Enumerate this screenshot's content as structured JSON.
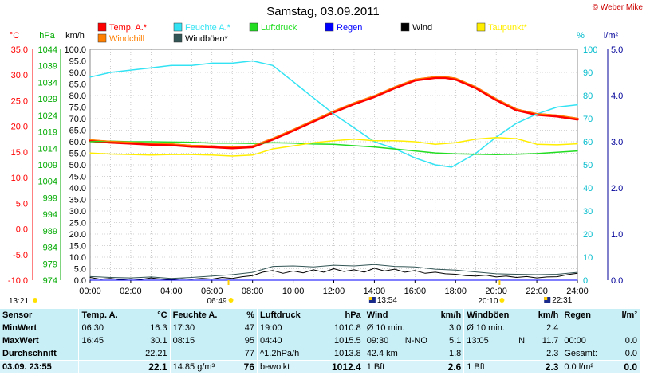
{
  "title": "Samstag, 03.09.2011",
  "copyright": "© Weber Mike",
  "colors": {
    "temp": "#ff0000",
    "windchill": "#ff7f00",
    "humidity": "#33e3f3",
    "dewpoint": "#ffee00",
    "pressure": "#22dd22",
    "rain": "#0000ff",
    "wind": "#000000",
    "gust": "#335555",
    "grid": "#aaaaaa",
    "axis_c": "#ff0000",
    "axis_hpa": "#00aa00",
    "axis_pct": "#00bbcc",
    "axis_rain": "#000099",
    "stats_bg": "#c8eef6"
  },
  "chart_data": {
    "type": "line",
    "x_ticks": [
      "00:00",
      "02:00",
      "04:00",
      "06:00",
      "08:00",
      "10:00",
      "12:00",
      "14:00",
      "16:00",
      "18:00",
      "20:00",
      "22:00",
      "24:00"
    ],
    "xlim": [
      "00:00",
      "24:00"
    ],
    "axes": {
      "c": {
        "label": "°C",
        "ticks": [
          "35.0",
          "30.0",
          "25.0",
          "20.0",
          "15.0",
          "10.0",
          "5.0",
          "0.0",
          "-5.0",
          "-10.0"
        ],
        "lim": [
          -10,
          35
        ]
      },
      "hpa": {
        "label": "hPa",
        "ticks": [
          "1044",
          "1039",
          "1034",
          "1029",
          "1024",
          "1019",
          "1014",
          "1009",
          "1004",
          "999",
          "994",
          "989",
          "984",
          "979",
          "974"
        ],
        "lim": [
          974,
          1044
        ]
      },
      "kmh": {
        "label": "km/h",
        "ticks": [
          "100.0",
          "95.0",
          "90.0",
          "85.0",
          "80.0",
          "75.0",
          "70.0",
          "65.0",
          "60.0",
          "55.0",
          "50.0",
          "45.0",
          "40.0",
          "35.0",
          "30.0",
          "25.0",
          "20.0",
          "15.0",
          "10.0",
          "5.0",
          "0.0"
        ],
        "lim": [
          0,
          100
        ]
      },
      "pct": {
        "label": "%",
        "ticks": [
          "100",
          "90",
          "80",
          "70",
          "60",
          "50",
          "40",
          "30",
          "20",
          "10",
          "0"
        ],
        "lim": [
          0,
          100
        ]
      },
      "rain": {
        "label": "l/m²",
        "ticks": [
          "5.0",
          "4.0",
          "3.0",
          "2.0",
          "1.0",
          "0.0"
        ],
        "lim": [
          0,
          5
        ]
      }
    },
    "legend": [
      {
        "name": "Temp. A.*",
        "color": "#ff0000"
      },
      {
        "name": "Feuchte A.*",
        "color": "#33e3f3"
      },
      {
        "name": "Luftdruck",
        "color": "#22dd22"
      },
      {
        "name": "Regen",
        "color": "#0000ff"
      },
      {
        "name": "Wind",
        "color": "#000000"
      },
      {
        "name": "Taupunkt*",
        "color": "#ffee00"
      },
      {
        "name": "Windchill",
        "color": "#ff7f00"
      },
      {
        "name": "Windböen*",
        "color": "#335555"
      }
    ],
    "series": [
      {
        "name": "Temp. A.*",
        "axis": "c",
        "color": "#ff0000",
        "width": 3.5,
        "x": [
          0,
          1,
          2,
          3,
          4,
          5,
          6,
          7,
          8,
          9,
          10,
          11,
          12,
          13,
          14,
          15,
          16,
          17,
          17.5,
          18,
          19,
          20,
          21,
          22,
          23,
          24
        ],
        "y": [
          17.2,
          16.9,
          16.7,
          16.5,
          16.4,
          16.1,
          16.0,
          15.8,
          16.0,
          17.5,
          19.2,
          21.0,
          22.8,
          24.4,
          25.8,
          27.5,
          29.0,
          29.5,
          29.5,
          29.2,
          27.5,
          25.2,
          23.2,
          22.3,
          22.0,
          21.4
        ]
      },
      {
        "name": "Feuchte A.*",
        "axis": "pct",
        "color": "#33e3f3",
        "width": 1.5,
        "x": [
          0,
          1,
          2,
          3,
          4,
          5,
          6,
          7,
          8,
          9,
          10,
          11,
          12,
          13,
          14,
          15,
          16,
          17,
          17.8,
          18,
          19,
          20,
          21,
          22,
          23,
          24
        ],
        "y": [
          88,
          90,
          91,
          92,
          93,
          93,
          94,
          94,
          95,
          93,
          86,
          79,
          72,
          66,
          60,
          57,
          53,
          50,
          49,
          50,
          55,
          62,
          68,
          72,
          75,
          76
        ]
      },
      {
        "name": "Luftdruck",
        "axis": "hpa",
        "color": "#22dd22",
        "width": 1.5,
        "x": [
          0,
          1,
          2,
          3,
          4,
          5,
          6,
          7,
          8,
          9,
          10,
          11,
          12,
          13,
          14,
          15,
          16,
          17,
          18,
          19,
          20,
          21,
          22,
          23,
          24
        ],
        "y": [
          1016.0,
          1016.2,
          1016.0,
          1016.0,
          1015.9,
          1015.8,
          1015.6,
          1015.6,
          1015.5,
          1015.7,
          1015.6,
          1015.3,
          1015.2,
          1014.8,
          1014.4,
          1013.8,
          1013.2,
          1012.6,
          1012.3,
          1012.2,
          1012.1,
          1012.2,
          1012.4,
          1012.8,
          1013.2
        ]
      },
      {
        "name": "Taupunkt*",
        "axis": "c",
        "color": "#ffee00",
        "width": 1.5,
        "x": [
          0,
          1,
          2,
          3,
          4,
          5,
          6,
          7,
          8,
          9,
          10,
          11,
          12,
          13,
          14,
          15,
          16,
          17,
          18,
          19,
          20,
          21,
          22,
          23,
          24
        ],
        "y": [
          14.8,
          14.6,
          14.5,
          14.4,
          14.5,
          14.5,
          14.4,
          14.2,
          14.4,
          15.6,
          16.2,
          16.8,
          17.2,
          17.5,
          17.2,
          17.2,
          17.0,
          16.5,
          16.8,
          17.5,
          17.8,
          17.6,
          16.5,
          16.4,
          16.6
        ]
      },
      {
        "name": "Windchill",
        "axis": "c",
        "color": "#ff7f00",
        "width": 1.2,
        "x": [
          0,
          1,
          2,
          3,
          4,
          5,
          6,
          7,
          8,
          9,
          10,
          11,
          12,
          13,
          14,
          15,
          16,
          17,
          17.5,
          18,
          19,
          20,
          21,
          22,
          23,
          24
        ],
        "y": [
          17.4,
          17.1,
          16.9,
          16.7,
          16.6,
          16.3,
          16.2,
          16.0,
          16.2,
          17.7,
          19.4,
          21.2,
          23.0,
          24.6,
          26.0,
          27.7,
          29.2,
          29.7,
          29.7,
          29.4,
          27.7,
          25.4,
          23.4,
          22.5,
          22.2,
          21.6
        ]
      },
      {
        "name": "Wind",
        "axis": "kmh",
        "color": "#000000",
        "width": 1,
        "x": [
          0,
          0.5,
          1,
          1.5,
          2,
          2.5,
          3,
          3.5,
          4,
          4.5,
          5,
          5.5,
          6,
          6.5,
          7,
          7.5,
          8,
          8.5,
          9,
          9.5,
          10,
          10.5,
          11,
          11.5,
          12,
          12.5,
          13,
          13.5,
          14,
          14.5,
          15,
          15.5,
          16,
          16.5,
          17,
          17.5,
          18,
          18.5,
          19,
          19.5,
          20,
          20.5,
          21,
          21.5,
          22,
          22.5,
          23,
          23.5,
          24
        ],
        "y": [
          1.2,
          0.4,
          0.8,
          0.2,
          0.6,
          0.3,
          1.0,
          0.5,
          0.2,
          0.6,
          0.4,
          0.8,
          0.5,
          1.2,
          0.8,
          1.5,
          2.0,
          3.5,
          4.2,
          3.0,
          4.0,
          3.2,
          4.5,
          3.5,
          5.0,
          3.8,
          4.5,
          3.5,
          5.2,
          4.0,
          4.8,
          3.5,
          4.2,
          3.0,
          3.5,
          2.8,
          2.6,
          2.0,
          1.8,
          2.2,
          1.4,
          1.8,
          1.2,
          1.6,
          1.0,
          1.4,
          1.5,
          2.4,
          3.0
        ]
      },
      {
        "name": "Windböen*",
        "axis": "kmh",
        "color": "#335555",
        "width": 1,
        "x": [
          0,
          1,
          2,
          3,
          4,
          5,
          6,
          7,
          8,
          9,
          10,
          11,
          12,
          13,
          14,
          15,
          16,
          17,
          18,
          19,
          20,
          21,
          22,
          23,
          24
        ],
        "y": [
          1.6,
          1.2,
          1.0,
          1.4,
          0.8,
          1.2,
          1.8,
          2.4,
          3.4,
          6.0,
          6.2,
          5.8,
          6.5,
          6.2,
          6.8,
          6.0,
          5.8,
          4.8,
          4.4,
          3.6,
          2.8,
          2.6,
          2.4,
          2.6,
          3.4
        ]
      },
      {
        "name": "Regen",
        "axis": "rain",
        "color": "#0000ff",
        "width": 1,
        "x": [
          0,
          24
        ],
        "y": [
          0,
          0
        ]
      }
    ],
    "reference_line": {
      "axis": "c",
      "value": 0,
      "color": "#0000aa",
      "style": "dashed"
    },
    "event_labels": [
      {
        "text": "13:21",
        "x": "13:21",
        "row": "left"
      },
      {
        "text": "06:49",
        "x": "06:49",
        "row": "low"
      },
      {
        "text": "13:54",
        "x": "13:54",
        "row": "high"
      },
      {
        "text": "20:10",
        "x": "20:10",
        "row": "low"
      },
      {
        "text": "22:31",
        "x": "22:31",
        "row": "high"
      }
    ]
  },
  "stats": {
    "headers": [
      "Sensor",
      "Temp. A.",
      "°C",
      "Feuchte A.",
      "%",
      "Luftdruck",
      "hPa",
      "Wind",
      "km/h",
      "Windböen",
      "km/h",
      "Regen",
      "l/m²"
    ],
    "rows": [
      {
        "label": "MinWert",
        "temp_time": "06:30",
        "temp_val": "16.3",
        "hum_time": "17:30",
        "hum_val": "47",
        "press_time": "19:00",
        "press_val": "1010.8",
        "wind_label": "Ø 10 min.",
        "wind_val": "3.0",
        "gust_label": "Ø 10 min.",
        "gust_val": "2.4",
        "rain_label": "",
        "rain_val": ""
      },
      {
        "label": "MaxWert",
        "temp_time": "16:45",
        "temp_val": "30.1",
        "hum_time": "08:15",
        "hum_val": "95",
        "press_time": "04:40",
        "press_val": "1015.5",
        "wind_label": "09:30",
        "wind_dir": "N-NO",
        "wind_val": "5.1",
        "gust_label": "13:05",
        "gust_dir": "N",
        "gust_val": "11.7",
        "rain_label": "00:00",
        "rain_val": "0.0"
      },
      {
        "label": "Durchschnitt",
        "temp_time": "",
        "temp_val": "22.21",
        "hum_time": "",
        "hum_val": "77",
        "press_time": "^1.2hPa/h",
        "press_val": "1013.8",
        "wind_label": "42.4 km",
        "wind_val": "1.8",
        "gust_label": "",
        "gust_val": "2.3",
        "rain_label": "Gesamt:",
        "rain_val": "0.0"
      },
      {
        "label": "03.09. 23:55",
        "temp_time": "",
        "temp_val": "22.1",
        "hum_time": "14.85 g/m³",
        "hum_val": "76",
        "press_time": "bewolkt",
        "press_val": "1012.4",
        "wind_label": "1 Bft",
        "wind_val": "2.6",
        "gust_label": "1 Bft",
        "gust_val": "2.3",
        "rain_label": "0.0 l/m²",
        "rain_val": "0.0"
      }
    ]
  }
}
